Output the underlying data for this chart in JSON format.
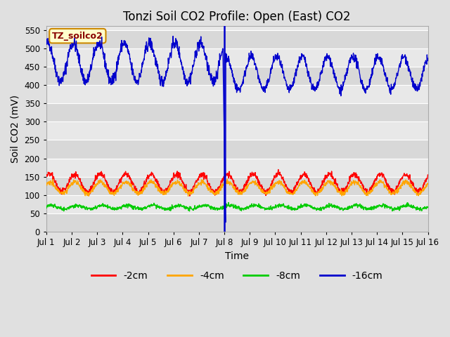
{
  "title": "Tonzi Soil CO2 Profile: Open (East) CO2",
  "ylabel": "Soil CO2 (mV)",
  "xlabel": "Time",
  "ylim": [
    0,
    560
  ],
  "yticks": [
    0,
    50,
    100,
    150,
    200,
    250,
    300,
    350,
    400,
    450,
    500,
    550
  ],
  "bg_color": "#e0e0e0",
  "plot_bg_color": "#e8e8e8",
  "label_box_color": "#ffffcc",
  "label_box_text": "TZ_soilco2",
  "label_box_edge": "#cc8800",
  "vertical_line_x": 8.0,
  "x_start": 1,
  "x_end": 16,
  "xtick_labels": [
    "Jul 1",
    "Jul 2",
    "Jul 3",
    "Jul 4",
    "Jul 5",
    "Jul 6",
    "Jul 7",
    "Jul 8",
    "Jul 9",
    "Jul 10",
    "Jul 11",
    "Jul 12",
    "Jul 13",
    "Jul 14",
    "Jul 15",
    "Jul 16"
  ],
  "xtick_positions": [
    1,
    2,
    3,
    4,
    5,
    6,
    7,
    8,
    9,
    10,
    11,
    12,
    13,
    14,
    15,
    16
  ],
  "colors": {
    "2cm": "#ff0000",
    "4cm": "#ffa500",
    "8cm": "#00cc00",
    "16cm": "#0000cc"
  },
  "legend_labels": [
    "-2cm",
    "-4cm",
    "-8cm",
    "-16cm"
  ],
  "legend_colors": [
    "#ff0000",
    "#ffa500",
    "#00cc00",
    "#0000cc"
  ],
  "band_colors": [
    "#d8d8d8",
    "#e8e8e8"
  ],
  "grid_color": "#ffffff",
  "title_fontsize": 12,
  "axis_fontsize": 10,
  "tick_fontsize": 8.5,
  "legend_fontsize": 10
}
